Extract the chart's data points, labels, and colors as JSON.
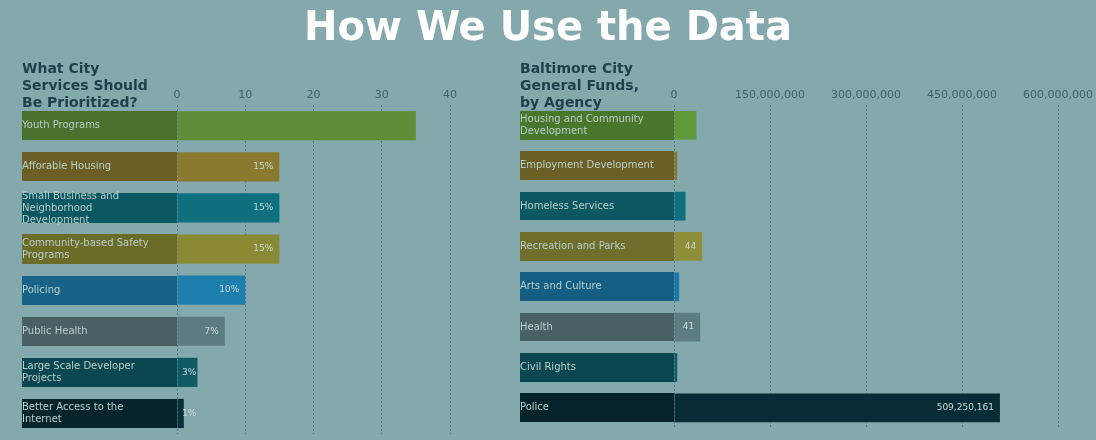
{
  "chart_data": [
    {
      "type": "bar",
      "orientation": "horizontal",
      "title": "What City Services Should Be Prioritized?",
      "categories": [
        "Youth Programs",
        "Afforable Housing",
        "Small Business and Neighborhood Development",
        "Community-based Safety Programs",
        "Policing",
        "Public Health",
        "Large Scale Developer Projects",
        "Better Access to the Internet"
      ],
      "values": [
        35,
        15,
        15,
        15,
        10,
        7,
        3,
        1
      ],
      "colors": [
        "#5e8f38",
        "#8a7a30",
        "#0e6f7e",
        "#8a8a35",
        "#1c7fad",
        "#5d7c80",
        "#0e5b67",
        "#07303a"
      ],
      "value_labels": [
        null,
        "15%",
        "15%",
        "15%",
        "10%",
        "7%",
        "3%",
        "1%"
      ],
      "xlim": [
        0,
        40
      ],
      "xticks": [
        0,
        10,
        20,
        30,
        40
      ],
      "grid": "x",
      "annotations": [
        "How We Use the Data"
      ]
    },
    {
      "type": "bar",
      "orientation": "horizontal",
      "title": "Baltimore City General Funds, by Agency",
      "categories": [
        "Housing and Community Development",
        "Employment Development",
        "Homeless Services",
        "Recreation and Parks",
        "Arts and Culture",
        "Health",
        "Civil Rights",
        "Police"
      ],
      "values": [
        35000000,
        5000000,
        18000000,
        44000000,
        8000000,
        41000000,
        5000000,
        509250161
      ],
      "colors": [
        "#5e9a3a",
        "#8a7a30",
        "#0e6f7e",
        "#8f8d38",
        "#1a78a8",
        "#5d7c80",
        "#0e5b67",
        "#062d36"
      ],
      "value_labels": [
        null,
        null,
        null,
        null,
        null,
        null,
        null,
        "509,250,161"
      ],
      "annotations": [
        {
          "text": "44",
          "x": 44000000,
          "y": "Recreation and Parks"
        },
        {
          "text": "41",
          "x": 41000000,
          "y": "Health"
        }
      ],
      "xlim": [
        0,
        600000000
      ],
      "xticks": [
        0,
        {
          "value": 150000000,
          "label": "150,000,000"
        },
        {
          "value": 300000000,
          "label": "300,000,000"
        },
        {
          "value": 450000000,
          "label": "450,000,000"
        },
        {
          "value": 600000000,
          "label": "600,000,000"
        }
      ],
      "grid": "x"
    }
  ]
}
